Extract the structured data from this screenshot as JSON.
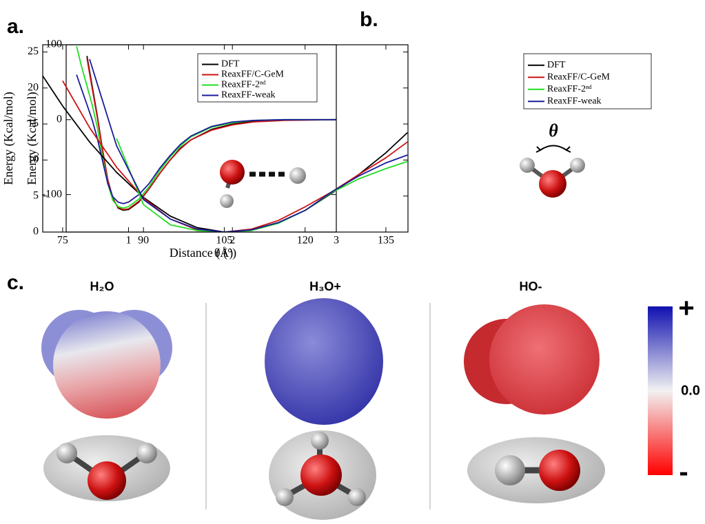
{
  "chart_data": [
    {
      "type": "line",
      "label": "a.",
      "x_label": "Distance (Å)",
      "y_label": "Energy (Kcal/mol)",
      "x": [
        0.5,
        0.55,
        0.6,
        0.65,
        0.7,
        0.75,
        0.8,
        0.85,
        0.9,
        0.95,
        1.0,
        1.1,
        1.2,
        1.3,
        1.4,
        1.5,
        1.6,
        1.8,
        2.0,
        2.2,
        2.5,
        3.0
      ],
      "series": [
        {
          "name": "DFT",
          "color": "#000000",
          "values": [
            null,
            null,
            85,
            45,
            5,
            -40,
            -80,
            -105,
            -118,
            -121,
            -120,
            -110,
            -92,
            -72,
            -54,
            -38,
            -27,
            -13,
            -6,
            -2,
            -0.5,
            0
          ]
        },
        {
          "name": "ReaxFF/C-GeM",
          "color": "#cc1111",
          "values": [
            null,
            null,
            82,
            42,
            3,
            -40,
            -80,
            -106,
            -117,
            -120,
            -119,
            -109,
            -92,
            -72,
            -54,
            -39,
            -27,
            -14,
            -7,
            -3,
            -1,
            0
          ]
        },
        {
          "name": "ReaxFF-2ⁿᵈ",
          "color": "#22dd22",
          "values": [
            98,
            70,
            45,
            20,
            -10,
            -50,
            -85,
            -108,
            -116,
            -118,
            -116,
            -106,
            -89,
            -68,
            -50,
            -35,
            -23,
            -10,
            -4,
            -1,
            0,
            0
          ]
        },
        {
          "name": "ReaxFF-weak",
          "color": "#1a1a99",
          "values": [
            60,
            40,
            20,
            0,
            -25,
            -55,
            -85,
            -103,
            -110,
            -112,
            -110,
            -100,
            -85,
            -65,
            -48,
            -33,
            -22,
            -9,
            -3,
            -1,
            0,
            0
          ]
        }
      ],
      "xlim": [
        0.4,
        3
      ],
      "xticks": [
        1,
        2,
        3
      ],
      "ylim": [
        -150,
        100
      ],
      "yticks": [
        -100,
        0,
        100
      ],
      "legend": "upper right"
    },
    {
      "type": "line",
      "label": "b.",
      "x_label": "θ (°)",
      "y_label": "Energy (Kcal/mol)",
      "annotation": "θ",
      "x": [
        71,
        75,
        80,
        85,
        90,
        95,
        100,
        105,
        110,
        115,
        120,
        125,
        130,
        135,
        139
      ],
      "series": [
        {
          "name": "DFT",
          "color": "#000000",
          "values": [
            22,
            17.5,
            12.5,
            8.3,
            4.8,
            2.2,
            0.6,
            0,
            0.3,
            1.3,
            3,
            5.4,
            8,
            11,
            13.8
          ]
        },
        {
          "name": "ReaxFF/C-GeM",
          "color": "#cc1111",
          "values": [
            null,
            21,
            14.5,
            9,
            4.7,
            1.8,
            0.3,
            0,
            0.4,
            1.6,
            3.5,
            5.6,
            8,
            10.3,
            12.5
          ]
        },
        {
          "name": "ReaxFF-2ⁿᵈ",
          "color": "#22dd22",
          "values": [
            null,
            null,
            null,
            13,
            3.8,
            1,
            0.2,
            0,
            0.2,
            1.2,
            3,
            5.5,
            7.4,
            8.8,
            9.8
          ]
        },
        {
          "name": "ReaxFF-weak",
          "color": "#1a1a99",
          "values": [
            null,
            null,
            24,
            12,
            4.5,
            1.8,
            0.4,
            0,
            0.3,
            1.3,
            3,
            5.6,
            7.8,
            9.6,
            10.7
          ]
        }
      ],
      "xlim": [
        71.3,
        139.1
      ],
      "xticks": [
        75,
        90,
        105,
        120,
        135
      ],
      "ylim": [
        0,
        26
      ],
      "yticks": [
        0,
        5,
        10,
        15,
        20,
        25
      ],
      "legend": "upper right"
    }
  ],
  "panel_c": {
    "label": "c.",
    "molecules": [
      "H₂O",
      "H₃O+",
      "HO-"
    ],
    "colorbar": {
      "top": "+",
      "middle": "0.0",
      "bottom": "-"
    }
  }
}
